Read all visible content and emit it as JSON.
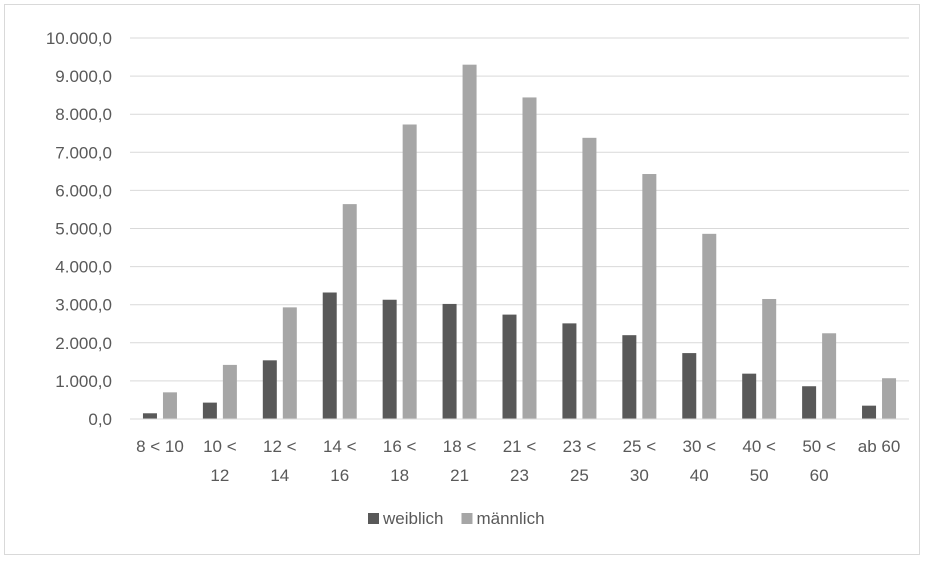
{
  "chart_data": {
    "type": "bar",
    "categories": [
      [
        "8 < 10"
      ],
      [
        "10 <",
        "12"
      ],
      [
        "12 <",
        "14"
      ],
      [
        "14 <",
        "16"
      ],
      [
        "16 <",
        "18"
      ],
      [
        "18 <",
        "21"
      ],
      [
        "21 <",
        "23"
      ],
      [
        "23 <",
        "25"
      ],
      [
        "25 <",
        "30"
      ],
      [
        "30 <",
        "40"
      ],
      [
        "40 <",
        "50"
      ],
      [
        "50 <",
        "60"
      ],
      [
        "ab 60"
      ]
    ],
    "series": [
      {
        "name": "weiblich",
        "color": "#595959",
        "values": [
          150,
          430,
          1540,
          3320,
          3130,
          3020,
          2740,
          2510,
          2200,
          1730,
          1190,
          860,
          350
        ]
      },
      {
        "name": "männlich",
        "color": "#a6a6a6",
        "values": [
          700,
          1420,
          2930,
          5640,
          7730,
          9300,
          8440,
          7380,
          6430,
          4860,
          3150,
          2250,
          1070
        ]
      }
    ],
    "ylim": [
      0,
      10000
    ],
    "yticks": [
      "0,0",
      "1.000,0",
      "2.000,0",
      "3.000,0",
      "4.000,0",
      "5.000,0",
      "6.000,0",
      "7.000,0",
      "8.000,0",
      "9.000,0",
      "10.000,0"
    ],
    "grid": true,
    "legend_position": "bottom"
  }
}
